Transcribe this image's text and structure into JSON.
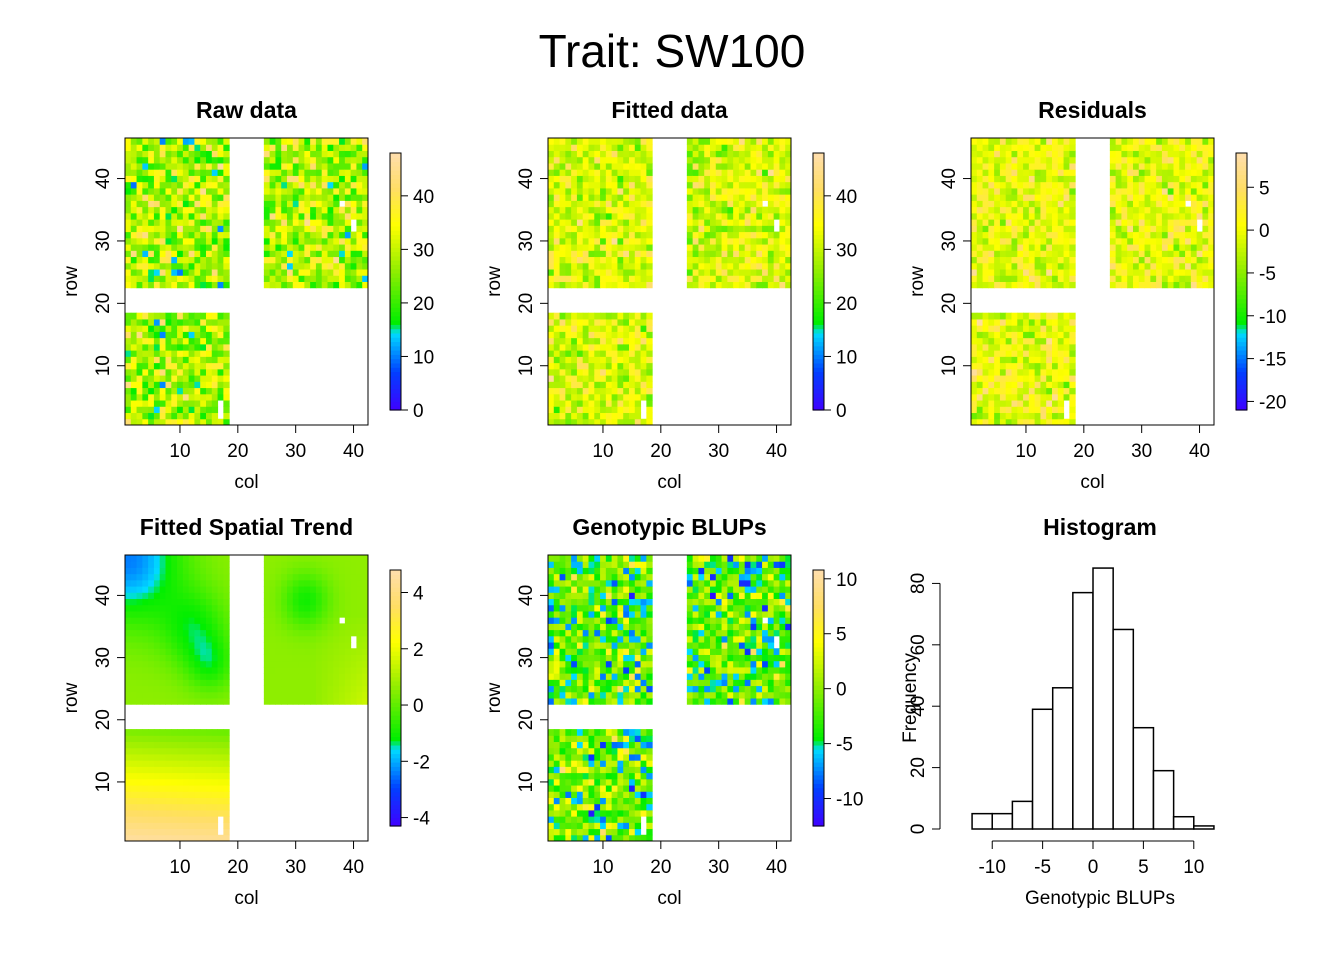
{
  "title": "Trait: SW100",
  "chart_data": [
    {
      "type": "heatmap",
      "title": "Raw data",
      "xlabel": "col",
      "ylabel": "row",
      "xticks": [
        10,
        20,
        30,
        40
      ],
      "yticks": [
        10,
        20,
        30,
        40
      ],
      "xlim": [
        0.5,
        42.5
      ],
      "ylim": [
        0.5,
        46.5
      ],
      "colorbar": {
        "ticks": [
          0,
          10,
          20,
          30,
          40
        ],
        "range": [
          0,
          48
        ]
      },
      "field_blocks": [
        {
          "cols": [
            1,
            18
          ],
          "rows": [
            23,
            46
          ]
        },
        {
          "cols": [
            25,
            42
          ],
          "rows": [
            23,
            46
          ]
        },
        {
          "cols": [
            1,
            18
          ],
          "rows": [
            1,
            18
          ]
        }
      ],
      "pattern": "noise",
      "value_range_shown": [
        8,
        48
      ]
    },
    {
      "type": "heatmap",
      "title": "Fitted data",
      "xlabel": "col",
      "ylabel": "row",
      "xticks": [
        10,
        20,
        30,
        40
      ],
      "yticks": [
        10,
        20,
        30,
        40
      ],
      "xlim": [
        0.5,
        42.5
      ],
      "ylim": [
        0.5,
        46.5
      ],
      "colorbar": {
        "ticks": [
          0,
          10,
          20,
          30,
          40
        ],
        "range": [
          0,
          48
        ]
      },
      "field_blocks": [
        {
          "cols": [
            1,
            18
          ],
          "rows": [
            23,
            46
          ]
        },
        {
          "cols": [
            25,
            42
          ],
          "rows": [
            23,
            46
          ]
        },
        {
          "cols": [
            1,
            18
          ],
          "rows": [
            1,
            18
          ]
        }
      ],
      "pattern": "noise",
      "value_range_shown": [
        18,
        46
      ]
    },
    {
      "type": "heatmap",
      "title": "Residuals",
      "xlabel": "col",
      "ylabel": "row",
      "xticks": [
        10,
        20,
        30,
        40
      ],
      "yticks": [
        10,
        20,
        30,
        40
      ],
      "xlim": [
        0.5,
        42.5
      ],
      "ylim": [
        0.5,
        46.5
      ],
      "colorbar": {
        "ticks": [
          -20,
          -15,
          -10,
          -5,
          0,
          5
        ],
        "range": [
          -21,
          9
        ]
      },
      "field_blocks": [
        {
          "cols": [
            1,
            18
          ],
          "rows": [
            23,
            46
          ]
        },
        {
          "cols": [
            25,
            42
          ],
          "rows": [
            23,
            46
          ]
        },
        {
          "cols": [
            1,
            18
          ],
          "rows": [
            1,
            18
          ]
        }
      ],
      "pattern": "noise",
      "value_range_shown": [
        -8,
        8
      ]
    },
    {
      "type": "heatmap",
      "title": "Fitted Spatial Trend",
      "xlabel": "col",
      "ylabel": "row",
      "xticks": [
        10,
        20,
        30,
        40
      ],
      "yticks": [
        10,
        20,
        30,
        40
      ],
      "xlim": [
        0.5,
        42.5
      ],
      "ylim": [
        0.5,
        46.5
      ],
      "colorbar": {
        "ticks": [
          -4,
          -2,
          0,
          2,
          4
        ],
        "range": [
          -4.3,
          4.8
        ]
      },
      "field_blocks": [
        {
          "cols": [
            1,
            18
          ],
          "rows": [
            23,
            46
          ]
        },
        {
          "cols": [
            25,
            42
          ],
          "rows": [
            23,
            46
          ]
        },
        {
          "cols": [
            1,
            18
          ],
          "rows": [
            1,
            18
          ]
        }
      ],
      "pattern": "smooth"
    },
    {
      "type": "heatmap",
      "title": "Genotypic BLUPs",
      "xlabel": "col",
      "ylabel": "row",
      "xticks": [
        10,
        20,
        30,
        40
      ],
      "yticks": [
        10,
        20,
        30,
        40
      ],
      "xlim": [
        0.5,
        42.5
      ],
      "ylim": [
        0.5,
        46.5
      ],
      "colorbar": {
        "ticks": [
          -10,
          -5,
          0,
          5,
          10
        ],
        "range": [
          -12.5,
          10.8
        ]
      },
      "field_blocks": [
        {
          "cols": [
            1,
            18
          ],
          "rows": [
            23,
            46
          ]
        },
        {
          "cols": [
            25,
            42
          ],
          "rows": [
            23,
            46
          ]
        },
        {
          "cols": [
            1,
            18
          ],
          "rows": [
            1,
            18
          ]
        }
      ],
      "pattern": "noise",
      "value_range_shown": [
        -12,
        9
      ]
    },
    {
      "type": "bar",
      "title": "Histogram",
      "xlabel": "Genotypic BLUPs",
      "ylabel": "Frequency",
      "xticks": [
        -10,
        -5,
        0,
        5,
        10
      ],
      "yticks": [
        0,
        20,
        40,
        60,
        80
      ],
      "xlim": [
        -13,
        12.8
      ],
      "ylim": [
        0,
        86
      ],
      "bin_edges": [
        -12,
        -10,
        -8,
        -6,
        -4,
        -2,
        0,
        2,
        4,
        6,
        8,
        10,
        12
      ],
      "values": [
        5,
        5,
        9,
        39,
        46,
        77,
        85,
        65,
        33,
        19,
        4,
        1
      ]
    }
  ]
}
